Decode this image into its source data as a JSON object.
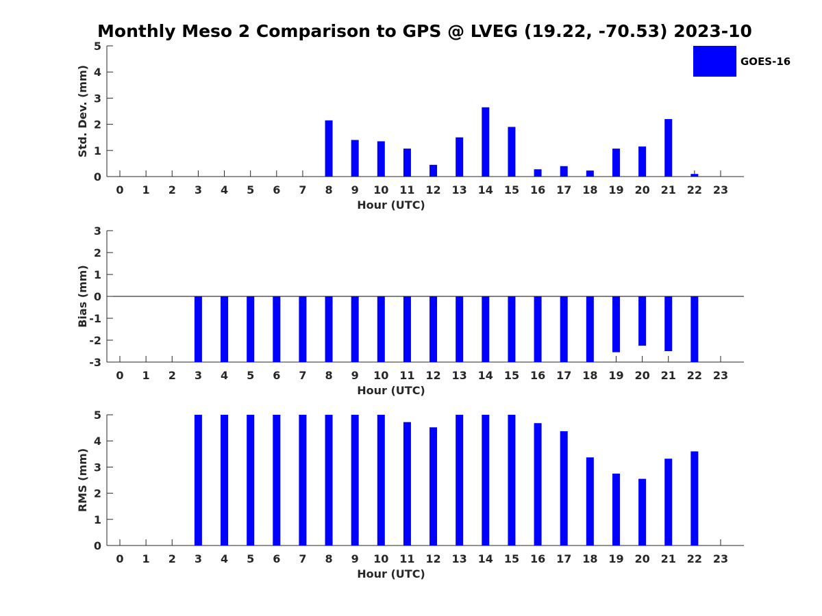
{
  "figure": {
    "title": "Monthly Meso 2 Comparison to GPS @ LVEG (19.22, -70.53) 2023-10"
  },
  "legend": {
    "label": "GOES-16",
    "color": "#0000ff",
    "placement": "top-right"
  },
  "chart_data": [
    {
      "type": "bar",
      "xlabel": "Hour (UTC)",
      "ylabel": "Std. Dev. (mm)",
      "ylim": [
        0,
        5
      ],
      "yticks": [
        0,
        1,
        2,
        3,
        4,
        5
      ],
      "categories": [
        "0",
        "1",
        "2",
        "3",
        "4",
        "5",
        "6",
        "7",
        "8",
        "9",
        "10",
        "11",
        "12",
        "13",
        "14",
        "15",
        "16",
        "17",
        "18",
        "19",
        "20",
        "21",
        "22",
        "23"
      ],
      "series": [
        {
          "name": "GOES-16",
          "values": [
            null,
            null,
            null,
            null,
            null,
            null,
            null,
            null,
            2.15,
            1.4,
            1.35,
            1.07,
            0.45,
            1.5,
            2.65,
            1.9,
            0.28,
            0.4,
            0.23,
            1.07,
            1.15,
            2.2,
            0.1,
            null
          ]
        }
      ]
    },
    {
      "type": "bar",
      "xlabel": "Hour (UTC)",
      "ylabel": "Bias (mm)",
      "ylim": [
        -3,
        3
      ],
      "yticks": [
        -3,
        -2,
        -1,
        0,
        1,
        2,
        3
      ],
      "zero_line": true,
      "categories": [
        "0",
        "1",
        "2",
        "3",
        "4",
        "5",
        "6",
        "7",
        "8",
        "9",
        "10",
        "11",
        "12",
        "13",
        "14",
        "15",
        "16",
        "17",
        "18",
        "19",
        "20",
        "21",
        "22",
        "23"
      ],
      "series": [
        {
          "name": "GOES-16",
          "values": [
            null,
            null,
            null,
            -3,
            -3,
            -3,
            -3,
            -3,
            -3,
            -3,
            -3,
            -3,
            -3,
            -3,
            -3,
            -3,
            -3,
            -3,
            -3,
            -2.55,
            -2.25,
            -2.5,
            -3,
            null
          ]
        }
      ]
    },
    {
      "type": "bar",
      "xlabel": "Hour (UTC)",
      "ylabel": "RMS (mm)",
      "ylim": [
        0,
        5
      ],
      "yticks": [
        0,
        1,
        2,
        3,
        4,
        5
      ],
      "categories": [
        "0",
        "1",
        "2",
        "3",
        "4",
        "5",
        "6",
        "7",
        "8",
        "9",
        "10",
        "11",
        "12",
        "13",
        "14",
        "15",
        "16",
        "17",
        "18",
        "19",
        "20",
        "21",
        "22",
        "23"
      ],
      "series": [
        {
          "name": "GOES-16",
          "values": [
            null,
            null,
            null,
            5,
            5,
            5,
            5,
            5,
            5,
            5,
            5,
            4.72,
            4.52,
            5,
            5,
            5,
            4.68,
            4.37,
            3.37,
            2.75,
            2.55,
            3.32,
            3.6,
            null
          ]
        }
      ]
    }
  ]
}
